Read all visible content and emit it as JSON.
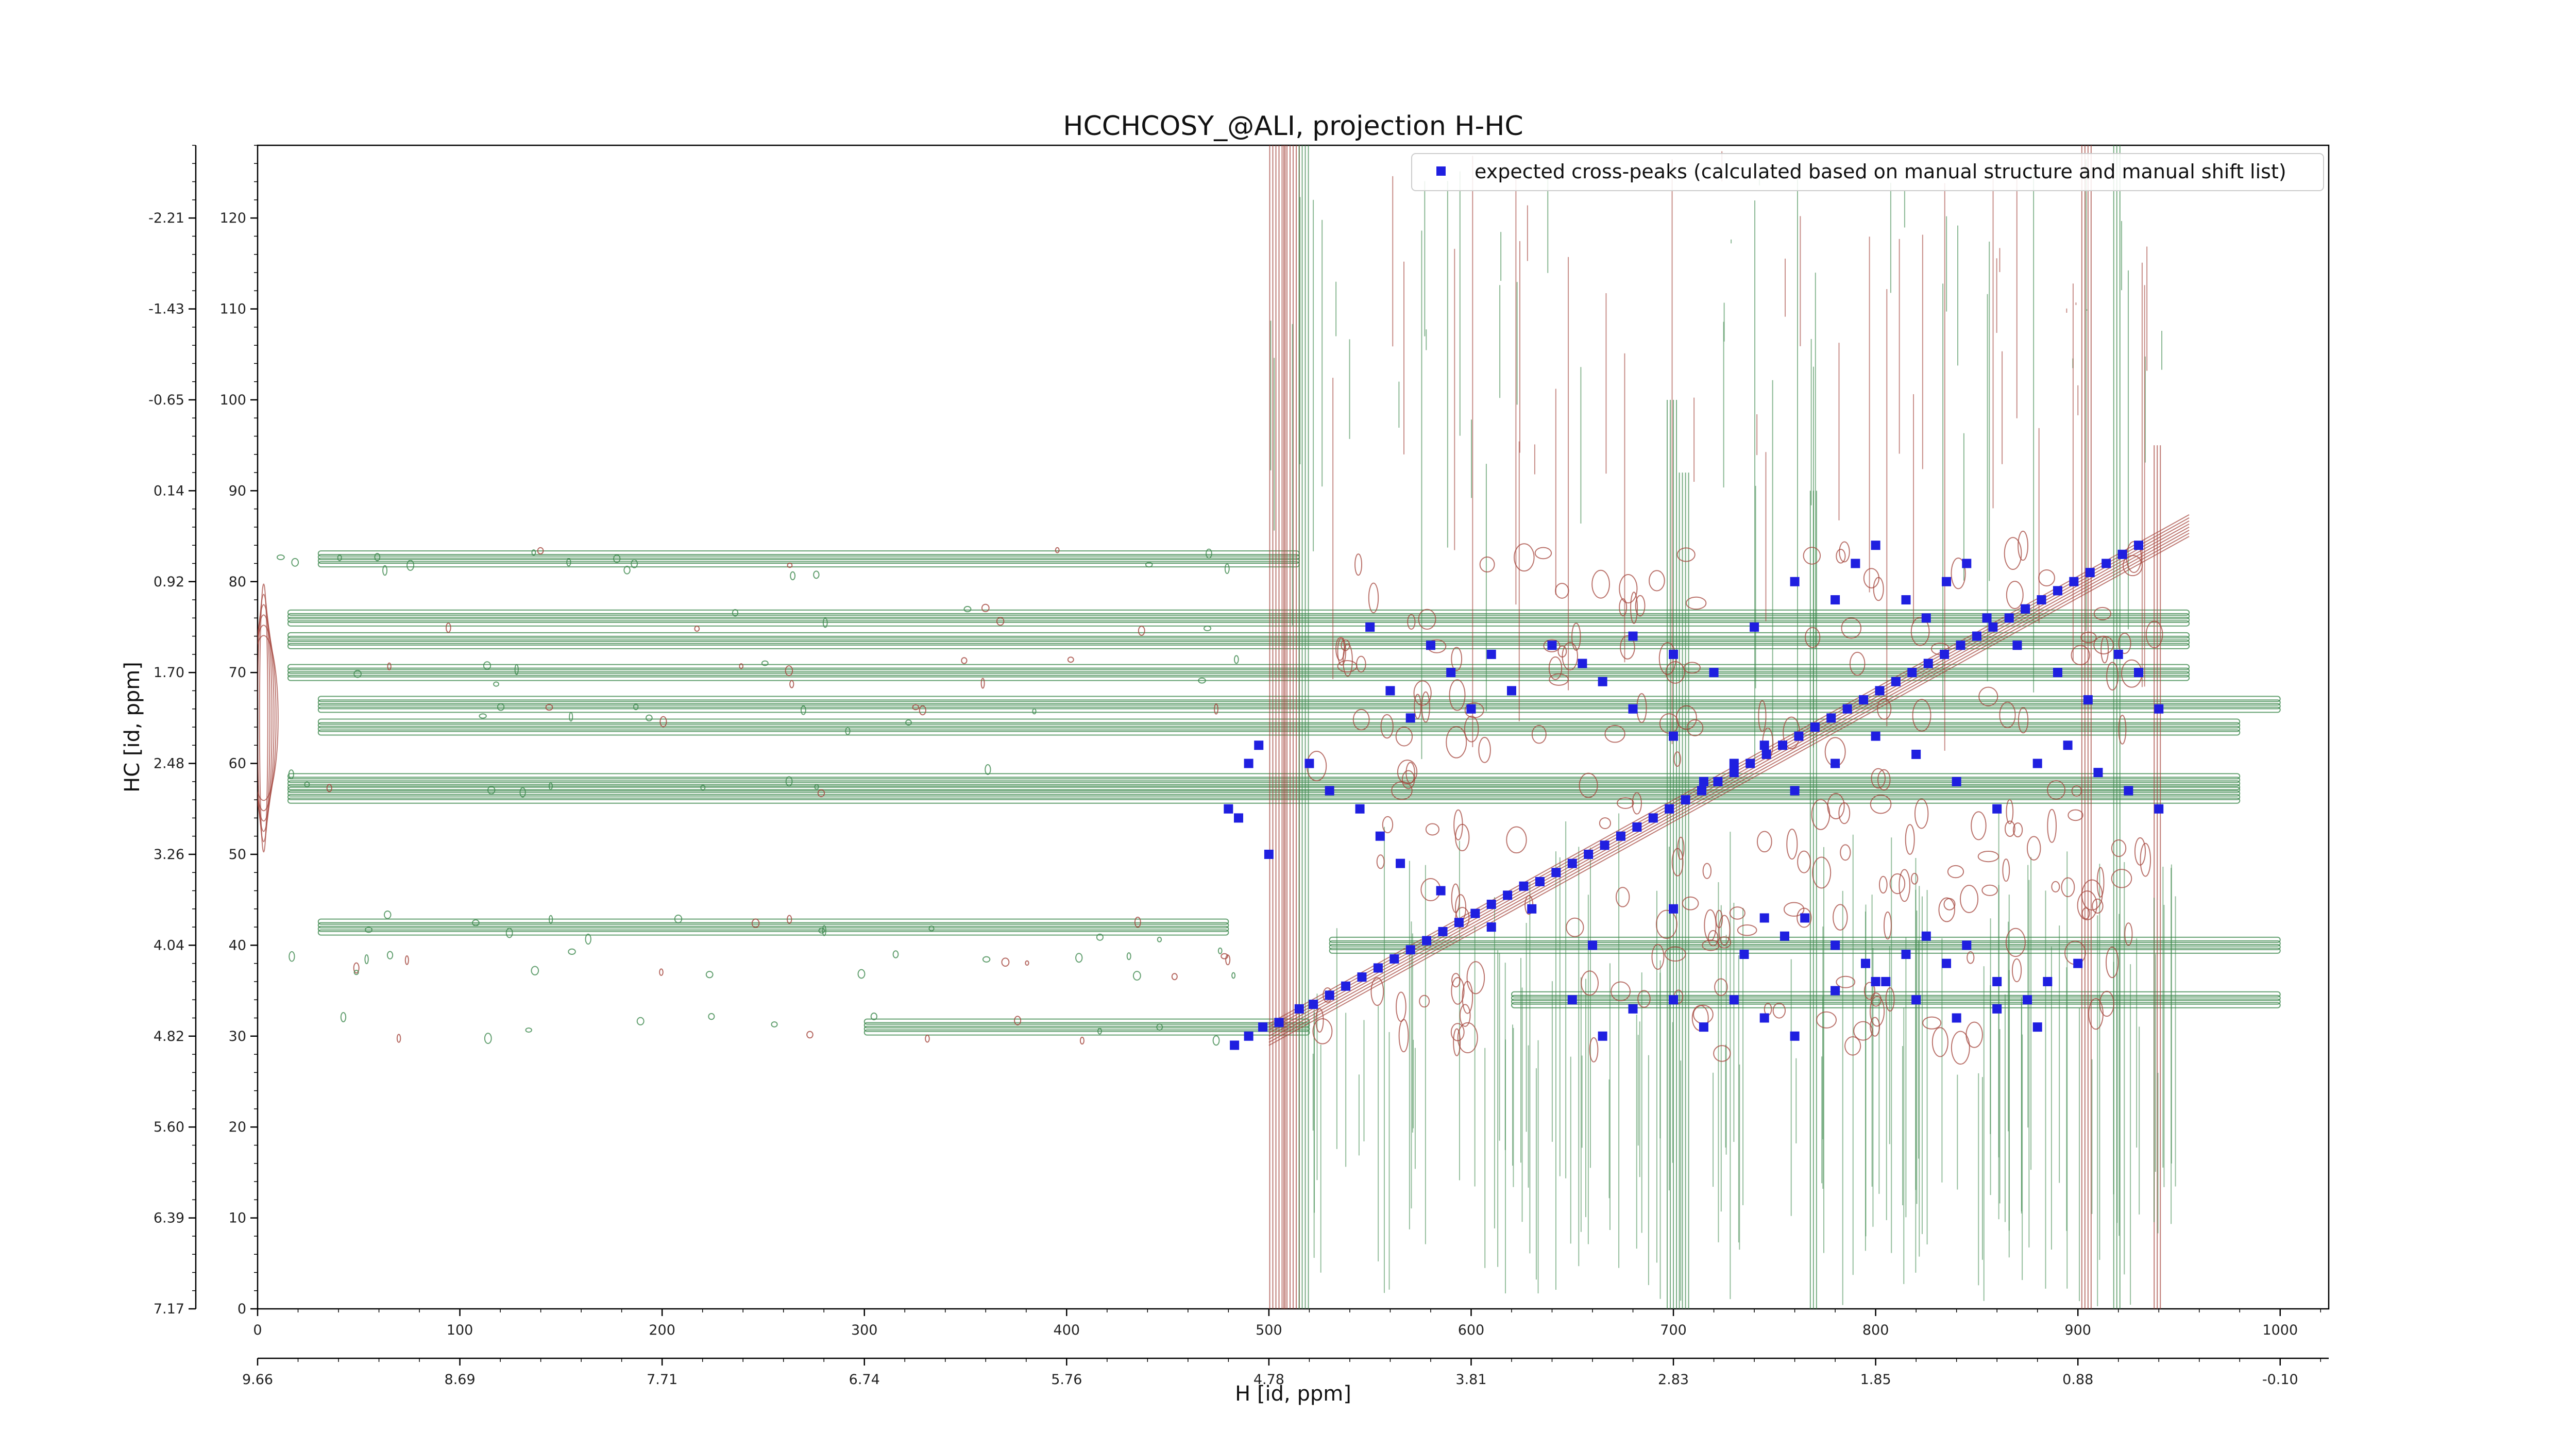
{
  "chart_data": {
    "type": "scatter",
    "title": "HCCHCOSY_@ALI, projection H-HC",
    "xlabel": "H [id, ppm]",
    "ylabel": "HC [id, ppm]",
    "xlim": [
      0,
      1024
    ],
    "ylim": [
      0,
      128
    ],
    "x_ticks": [
      0,
      100,
      200,
      300,
      400,
      500,
      600,
      700,
      800,
      900,
      1000
    ],
    "y_ticks": [
      0,
      10,
      20,
      30,
      40,
      50,
      60,
      70,
      80,
      90,
      100,
      110,
      120
    ],
    "x_ppm_ticks": [
      "9.66",
      "8.69",
      "7.71",
      "6.74",
      "5.76",
      "4.78",
      "3.81",
      "2.83",
      "1.85",
      "0.88",
      "-0.10"
    ],
    "y_ppm_ticks": [
      "7.17",
      "6.39",
      "5.60",
      "4.82",
      "4.04",
      "3.26",
      "2.48",
      "1.70",
      "0.92",
      "0.14",
      "-0.65",
      "-1.43",
      "-2.21"
    ],
    "legend": {
      "position": "top-right",
      "entries": [
        "expected cross-peaks (calculated based on manual structure and manual shift list)"
      ]
    },
    "colors": {
      "positive_contour": "#a4453c",
      "negative_contour": "#3f8a4f",
      "expected_peak": "#1f1fe0"
    },
    "grid": false,
    "series": [
      {
        "name": "expected cross-peaks (calculated based on manual structure and manual shift list)",
        "marker": "square",
        "points": [
          [
            483,
            29
          ],
          [
            490,
            30
          ],
          [
            497,
            31
          ],
          [
            505,
            31.5
          ],
          [
            515,
            33
          ],
          [
            522,
            33.5
          ],
          [
            530,
            34.5
          ],
          [
            538,
            35.5
          ],
          [
            546,
            36.5
          ],
          [
            554,
            37.5
          ],
          [
            562,
            38.5
          ],
          [
            570,
            39.5
          ],
          [
            578,
            40.5
          ],
          [
            586,
            41.5
          ],
          [
            594,
            42.5
          ],
          [
            602,
            43.5
          ],
          [
            610,
            44.5
          ],
          [
            618,
            45.5
          ],
          [
            626,
            46.5
          ],
          [
            634,
            47
          ],
          [
            642,
            48
          ],
          [
            650,
            49
          ],
          [
            658,
            50
          ],
          [
            666,
            51
          ],
          [
            674,
            52
          ],
          [
            682,
            53
          ],
          [
            690,
            54
          ],
          [
            698,
            55
          ],
          [
            706,
            56
          ],
          [
            714,
            57
          ],
          [
            722,
            58
          ],
          [
            730,
            59
          ],
          [
            738,
            60
          ],
          [
            746,
            61
          ],
          [
            754,
            62
          ],
          [
            762,
            63
          ],
          [
            770,
            64
          ],
          [
            778,
            65
          ],
          [
            786,
            66
          ],
          [
            794,
            67
          ],
          [
            802,
            68
          ],
          [
            810,
            69
          ],
          [
            818,
            70
          ],
          [
            826,
            71
          ],
          [
            834,
            72
          ],
          [
            842,
            73
          ],
          [
            850,
            74
          ],
          [
            858,
            75
          ],
          [
            866,
            76
          ],
          [
            874,
            77
          ],
          [
            882,
            78
          ],
          [
            890,
            79
          ],
          [
            898,
            80
          ],
          [
            906,
            81
          ],
          [
            914,
            82
          ],
          [
            922,
            83
          ],
          [
            930,
            84
          ],
          [
            480,
            55
          ],
          [
            485,
            54
          ],
          [
            490,
            60
          ],
          [
            495,
            62
          ],
          [
            500,
            50
          ],
          [
            550,
            75
          ],
          [
            560,
            68
          ],
          [
            570,
            65
          ],
          [
            580,
            73
          ],
          [
            590,
            70
          ],
          [
            600,
            66
          ],
          [
            610,
            72
          ],
          [
            620,
            68
          ],
          [
            640,
            73
          ],
          [
            655,
            71
          ],
          [
            665,
            69
          ],
          [
            680,
            74
          ],
          [
            700,
            72
          ],
          [
            720,
            70
          ],
          [
            740,
            75
          ],
          [
            760,
            80
          ],
          [
            780,
            78
          ],
          [
            790,
            82
          ],
          [
            800,
            84
          ],
          [
            815,
            78
          ],
          [
            825,
            76
          ],
          [
            835,
            80
          ],
          [
            845,
            82
          ],
          [
            855,
            76
          ],
          [
            870,
            73
          ],
          [
            890,
            70
          ],
          [
            905,
            67
          ],
          [
            920,
            72
          ],
          [
            930,
            70
          ],
          [
            940,
            66
          ],
          [
            520,
            60
          ],
          [
            530,
            57
          ],
          [
            545,
            55
          ],
          [
            555,
            52
          ],
          [
            565,
            49
          ],
          [
            585,
            46
          ],
          [
            610,
            42
          ],
          [
            630,
            44
          ],
          [
            660,
            40
          ],
          [
            700,
            44
          ],
          [
            735,
            39
          ],
          [
            745,
            43
          ],
          [
            755,
            41
          ],
          [
            765,
            43
          ],
          [
            780,
            40
          ],
          [
            795,
            38
          ],
          [
            805,
            36
          ],
          [
            815,
            39
          ],
          [
            825,
            41
          ],
          [
            835,
            38
          ],
          [
            845,
            40
          ],
          [
            860,
            36
          ],
          [
            875,
            34
          ],
          [
            885,
            36
          ],
          [
            900,
            38
          ],
          [
            650,
            34
          ],
          [
            665,
            30
          ],
          [
            680,
            33
          ],
          [
            700,
            34
          ],
          [
            715,
            31
          ],
          [
            730,
            34
          ],
          [
            745,
            32
          ],
          [
            760,
            30
          ],
          [
            780,
            35
          ],
          [
            800,
            36
          ],
          [
            820,
            34
          ],
          [
            840,
            32
          ],
          [
            860,
            33
          ],
          [
            880,
            31
          ],
          [
            680,
            66
          ],
          [
            700,
            63
          ],
          [
            715,
            58
          ],
          [
            730,
            60
          ],
          [
            745,
            62
          ],
          [
            760,
            57
          ],
          [
            780,
            60
          ],
          [
            800,
            63
          ],
          [
            820,
            61
          ],
          [
            840,
            58
          ],
          [
            860,
            55
          ],
          [
            880,
            60
          ],
          [
            895,
            62
          ],
          [
            910,
            59
          ],
          [
            925,
            57
          ],
          [
            940,
            55
          ]
        ]
      }
    ]
  }
}
